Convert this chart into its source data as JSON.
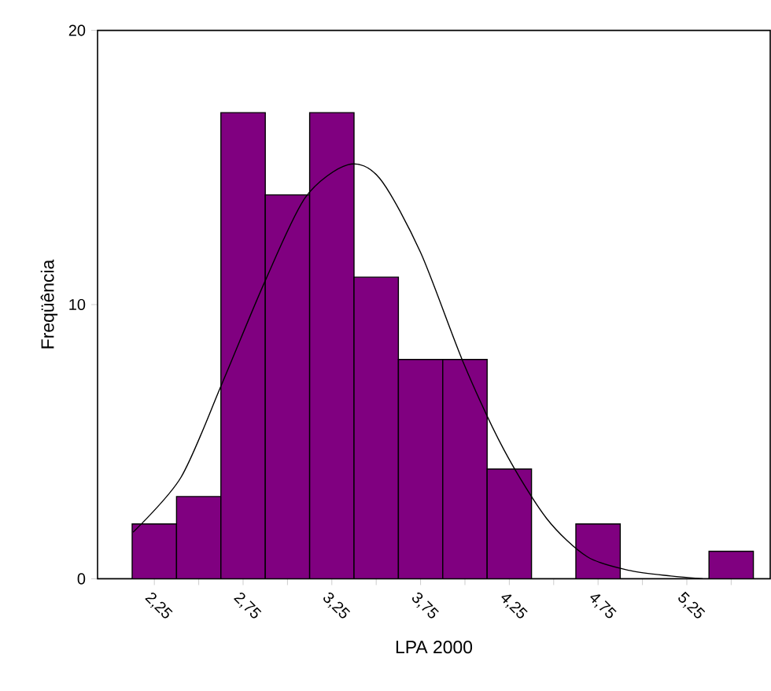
{
  "chart_data": {
    "type": "histogram",
    "xlabel": "LPA  2000",
    "ylabel": "Freqüência",
    "bins": [
      2.125,
      2.375,
      2.625,
      2.875,
      3.125,
      3.375,
      3.625,
      3.875,
      4.125,
      4.375,
      4.625,
      4.875,
      5.125,
      5.375,
      5.625
    ],
    "series": [
      {
        "color": "#800080",
        "values": [
          2,
          3,
          17,
          14,
          17,
          11,
          8,
          8,
          4,
          0,
          2,
          0,
          0,
          1
        ]
      },
      {
        "type": "line",
        "color": "#000000",
        "x": [
          2.13,
          2.4,
          2.63,
          2.87,
          3.1,
          3.34,
          3.52,
          3.75,
          3.99,
          4.22,
          4.46,
          4.69,
          4.93,
          5.16,
          5.34
        ],
        "values": [
          1.7,
          3.7,
          7.1,
          10.8,
          13.9,
          15.1,
          14.6,
          11.9,
          7.9,
          4.7,
          2.2,
          0.8,
          0.3,
          0.1,
          0.0
        ]
      }
    ],
    "xlim": [
      1.93,
      5.72
    ],
    "ylim": [
      0,
      20
    ],
    "xticks": [
      {
        "value": 2.25,
        "label": "2,25"
      },
      {
        "value": 2.5,
        "label": null
      },
      {
        "value": 2.75,
        "label": "2,75"
      },
      {
        "value": 3.0,
        "label": null
      },
      {
        "value": 3.25,
        "label": "3,25"
      },
      {
        "value": 3.5,
        "label": null
      },
      {
        "value": 3.75,
        "label": "3,75"
      },
      {
        "value": 4.0,
        "label": null
      },
      {
        "value": 4.25,
        "label": "4,25"
      },
      {
        "value": 4.5,
        "label": null
      },
      {
        "value": 4.75,
        "label": "4,75"
      },
      {
        "value": 5.0,
        "label": null
      },
      {
        "value": 5.25,
        "label": "5,25"
      },
      {
        "value": 5.5,
        "label": null
      }
    ],
    "yticks": [
      0,
      10,
      20
    ]
  }
}
